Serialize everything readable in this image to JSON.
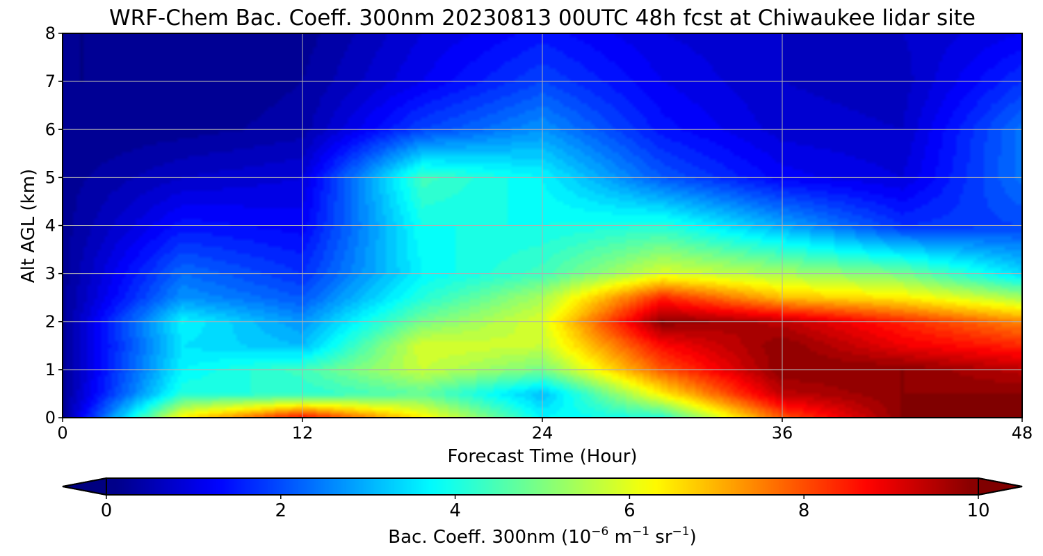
{
  "chart_data": {
    "type": "heatmap",
    "title": "WRF-Chem Bac. Coeff. 300nm  20230813 00UTC 48h fcst at Chiwaukee lidar site",
    "xlabel": "Forecast Time (Hour)",
    "ylabel": "Alt AGL (km)",
    "x_ticks": [
      "0",
      "12",
      "24",
      "36",
      "48"
    ],
    "y_ticks": [
      "0",
      "1",
      "2",
      "3",
      "4",
      "5",
      "6",
      "7",
      "8"
    ],
    "xlim": [
      0,
      48
    ],
    "ylim": [
      0,
      8
    ],
    "grid": true,
    "colormap": "jet",
    "colorbar": {
      "label_main": "Bac. Coeff. 300nm  (10",
      "exp1": "−6",
      "label_mid": " m",
      "exp2": "−1",
      "label_mid2": " sr",
      "exp3": "−1",
      "label_end": ")",
      "ticks": [
        "0",
        "2",
        "4",
        "6",
        "8",
        "10"
      ],
      "range": [
        0,
        10
      ],
      "extend": "both",
      "orientation": "horizontal"
    },
    "x": [
      0,
      6,
      12,
      18,
      24,
      30,
      36,
      42,
      48
    ],
    "y": [
      0,
      0.5,
      1,
      1.5,
      2,
      2.5,
      3,
      4,
      5,
      6,
      7,
      8
    ],
    "z": [
      [
        0.3,
        6.5,
        8.8,
        6.5,
        3.8,
        4.2,
        8.0,
        10.0,
        10.0
      ],
      [
        0.3,
        4.2,
        4.2,
        4.8,
        3.2,
        6.5,
        9.5,
        10.0,
        10.0
      ],
      [
        0.3,
        3.8,
        4.5,
        5.8,
        5.0,
        8.0,
        10.0,
        10.0,
        9.5
      ],
      [
        0.3,
        3.6,
        3.2,
        6.0,
        5.8,
        8.8,
        10.0,
        9.0,
        8.5
      ],
      [
        0.3,
        3.8,
        2.8,
        5.0,
        6.0,
        10.0,
        9.5,
        8.5,
        7.5
      ],
      [
        0.3,
        2.8,
        2.2,
        4.2,
        5.5,
        8.5,
        7.0,
        6.5,
        5.5
      ],
      [
        0.3,
        2.4,
        1.8,
        3.8,
        4.5,
        6.0,
        5.5,
        5.0,
        3.5
      ],
      [
        0.3,
        1.5,
        1.3,
        4.0,
        4.0,
        4.2,
        3.0,
        1.8,
        2.0
      ],
      [
        0.3,
        0.8,
        1.0,
        4.5,
        3.8,
        2.2,
        1.3,
        1.0,
        2.5
      ],
      [
        0.2,
        0.3,
        0.5,
        2.0,
        2.8,
        1.5,
        0.9,
        0.8,
        2.5
      ],
      [
        0.2,
        0.2,
        0.4,
        1.2,
        2.0,
        1.2,
        0.8,
        0.7,
        1.8
      ],
      [
        0.2,
        0.2,
        0.3,
        1.0,
        1.5,
        1.0,
        0.8,
        0.8,
        1.2
      ]
    ]
  }
}
